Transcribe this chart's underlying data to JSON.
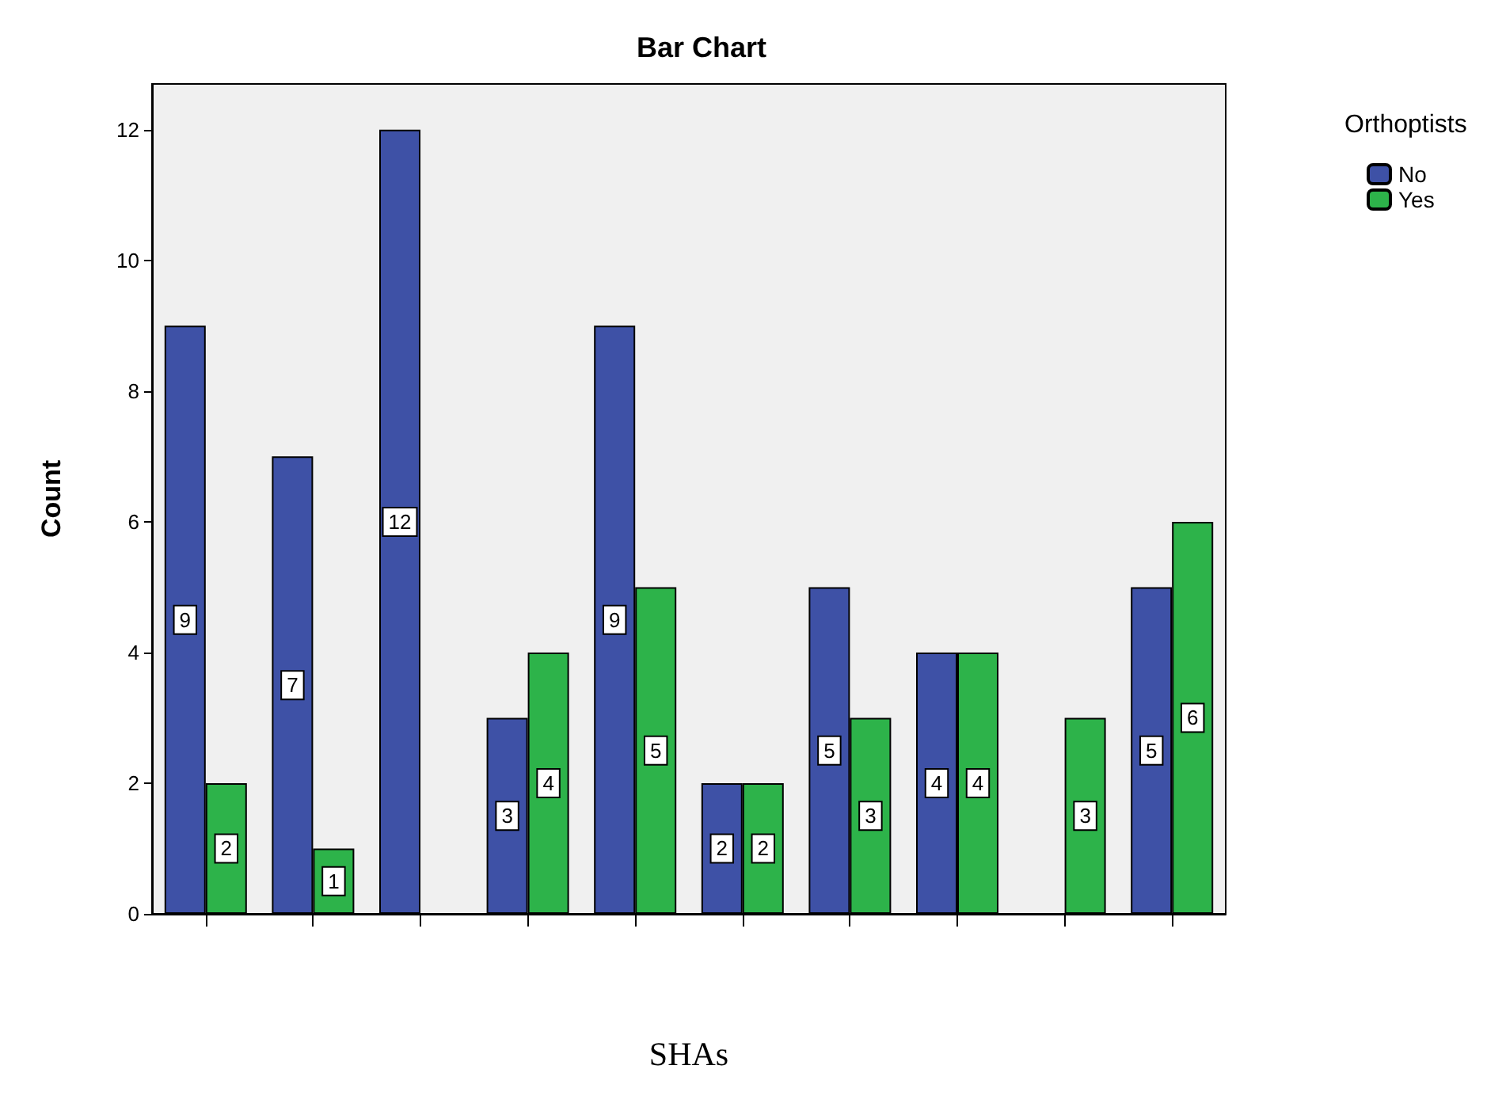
{
  "chart_data": {
    "type": "bar",
    "title": "Bar Chart",
    "xlabel": "SHAs",
    "ylabel": "Count",
    "legend_title": "Orthoptists",
    "categories": [
      null,
      null,
      null,
      null,
      null,
      null,
      null,
      null,
      null,
      null
    ],
    "series": [
      {
        "name": "No",
        "color": "#3e51a6",
        "values": [
          9,
          7,
          12,
          3,
          9,
          2,
          5,
          4,
          null,
          5
        ]
      },
      {
        "name": "Yes",
        "color": "#2db34a",
        "values": [
          2,
          1,
          null,
          4,
          5,
          2,
          3,
          4,
          3,
          6
        ]
      }
    ],
    "ylim": [
      0,
      12.7
    ],
    "yticks": [
      0,
      2,
      4,
      6,
      8,
      10,
      12
    ],
    "grid": false,
    "legend": "top right",
    "data_labels": true
  }
}
